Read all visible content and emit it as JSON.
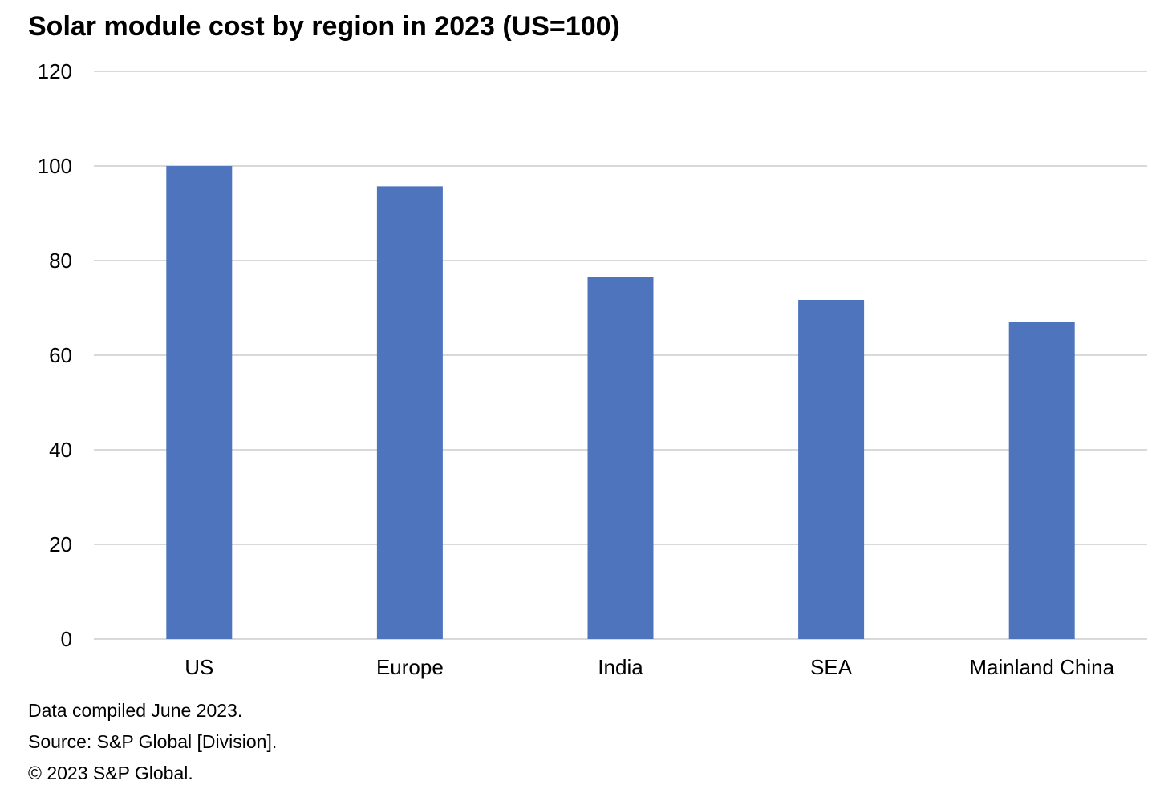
{
  "chart_data": {
    "type": "bar",
    "title": "Solar module cost by region in 2023 (US=100)",
    "categories": [
      "US",
      "Europe",
      "India",
      "SEA",
      "Mainland China"
    ],
    "values": [
      100,
      95.7,
      76.6,
      71.7,
      67.1
    ],
    "y_ticks": [
      "0",
      "20",
      "40",
      "60",
      "80",
      "100",
      "120"
    ],
    "ylim": [
      0,
      120
    ],
    "grid": true,
    "legend": "none",
    "colors": {
      "bar": "#4E74BD",
      "grid": "#D9D9D9",
      "text": "#000000"
    }
  },
  "footer": {
    "notes": [
      "Data compiled June 2023.",
      "Source: S&P Global [Division].",
      "© 2023 S&P Global."
    ]
  }
}
